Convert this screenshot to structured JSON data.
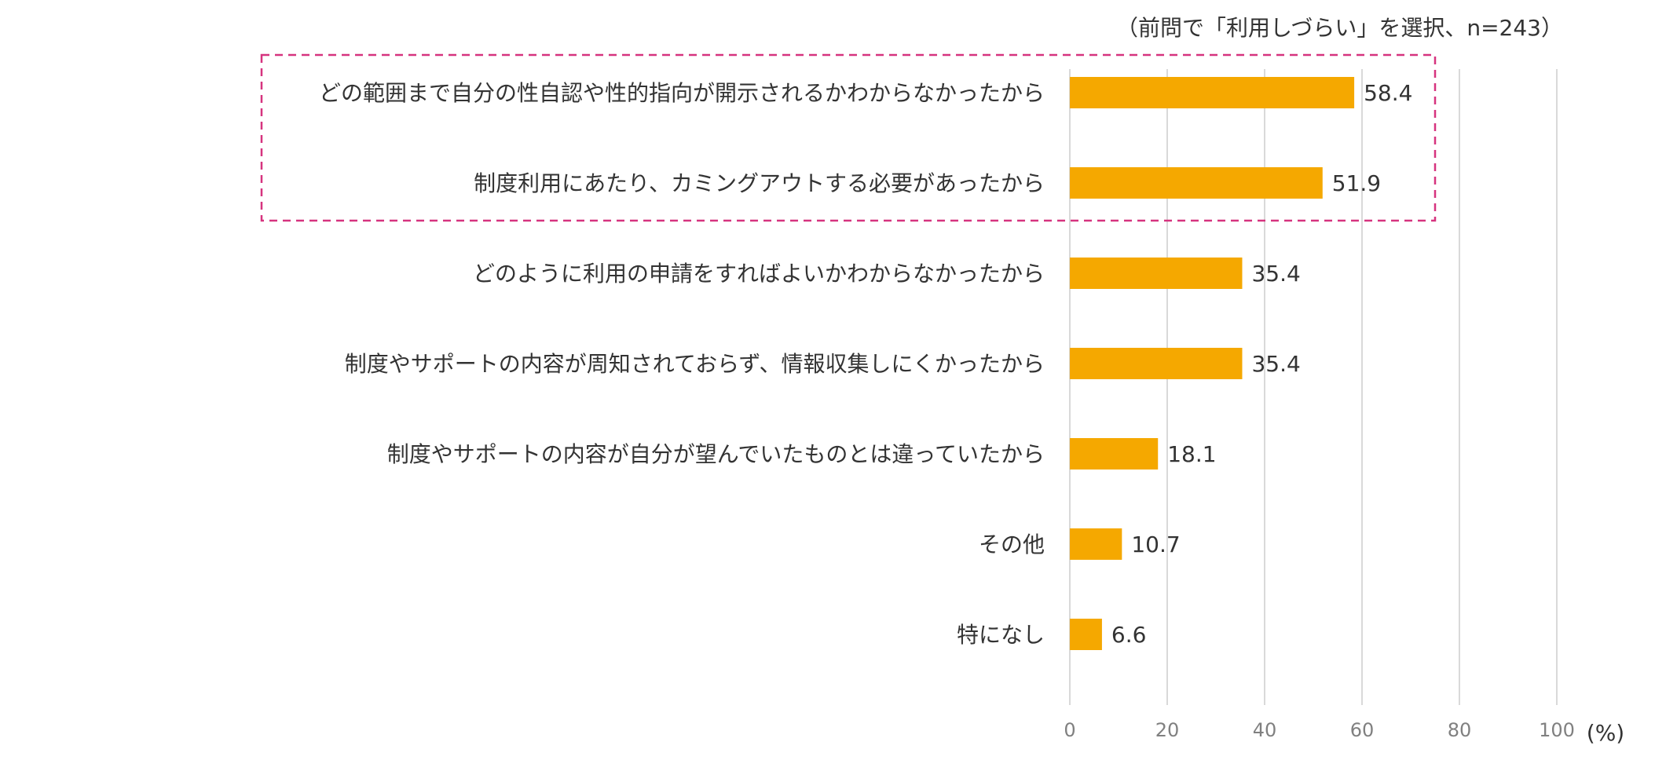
{
  "chart_data": {
    "type": "bar",
    "orientation": "horizontal",
    "note": "（前問で「利用しづらい」を選択、n=243）",
    "unit": "(%)",
    "categories": [
      "どの範囲まで自分の性自認や性的指向が開示されるかわからなかったから",
      "制度利用にあたり、カミングアウトする必要があったから",
      "どのように利用の申請をすればよいかわからなかったから",
      "制度やサポートの内容が周知されておらず、情報収集しにくかったから",
      "制度やサポートの内容が自分が望んでいたものとは違っていたから",
      "その他",
      "特になし"
    ],
    "values": [
      58.4,
      51.9,
      35.4,
      35.4,
      18.1,
      10.7,
      6.6
    ],
    "value_labels": [
      "58.4",
      "51.9",
      "35.4",
      "35.4",
      "18.1",
      "10.7",
      "6.6"
    ],
    "xlim": [
      0,
      100
    ],
    "ticks": [
      0,
      20,
      40,
      60,
      80,
      100
    ],
    "tick_labels": [
      "0",
      "20",
      "40",
      "60",
      "80",
      "100"
    ],
    "grid": true,
    "highlight": {
      "indices": [
        0,
        1
      ],
      "style": "dashed-box",
      "color": "#D6337F"
    },
    "bar_color": "#F5A800",
    "grid_color": "#D9D9D9"
  }
}
